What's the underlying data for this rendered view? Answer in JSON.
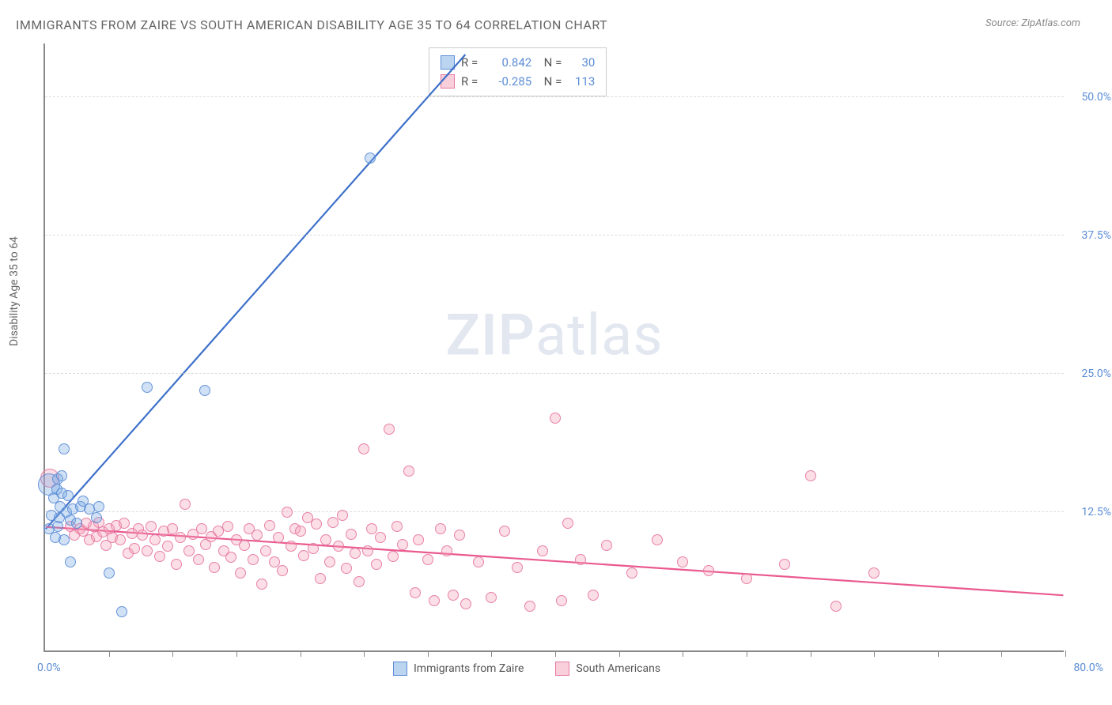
{
  "title": "IMMIGRANTS FROM ZAIRE VS SOUTH AMERICAN DISABILITY AGE 35 TO 64 CORRELATION CHART",
  "source": "Source: ZipAtlas.com",
  "y_axis_label": "Disability Age 35 to 64",
  "watermark_a": "ZIP",
  "watermark_b": "atlas",
  "chart": {
    "type": "scatter",
    "xlim": [
      0,
      80
    ],
    "ylim": [
      0,
      55
    ],
    "x_origin_label": "0.0%",
    "x_max_label": "80.0%",
    "y_ticks": [
      {
        "v": 12.5,
        "label": "12.5%"
      },
      {
        "v": 25.0,
        "label": "25.0%"
      },
      {
        "v": 37.5,
        "label": "37.5%"
      },
      {
        "v": 50.0,
        "label": "50.0%"
      }
    ],
    "x_tick_step": 5,
    "background_color": "#ffffff",
    "grid_color": "#dddddd",
    "axis_color": "#888888",
    "point_radius": 7,
    "series": [
      {
        "name": "Immigrants from Zaire",
        "color_fill": "rgba(120,170,225,0.35)",
        "color_stroke": "#5b8dd6",
        "legend_swatch_class": "blue",
        "stats": {
          "R": "0.842",
          "N": "30"
        },
        "trend": {
          "x1": 0,
          "y1": 11.0,
          "x2": 33,
          "y2": 54.0,
          "stroke": "#3e70c9",
          "width": 2.2
        },
        "points": [
          {
            "x": 0.3,
            "y": 11.0,
            "r": 7
          },
          {
            "x": 0.3,
            "y": 15.0,
            "r": 14
          },
          {
            "x": 0.5,
            "y": 12.2,
            "r": 7
          },
          {
            "x": 0.7,
            "y": 13.8,
            "r": 7
          },
          {
            "x": 0.8,
            "y": 10.2,
            "r": 7
          },
          {
            "x": 0.9,
            "y": 14.6,
            "r": 7
          },
          {
            "x": 1.0,
            "y": 15.5,
            "r": 7
          },
          {
            "x": 1.0,
            "y": 11.2,
            "r": 7
          },
          {
            "x": 1.1,
            "y": 12.0,
            "r": 7
          },
          {
            "x": 1.2,
            "y": 13.0,
            "r": 7
          },
          {
            "x": 1.3,
            "y": 14.2,
            "r": 7
          },
          {
            "x": 1.3,
            "y": 15.8,
            "r": 7
          },
          {
            "x": 1.5,
            "y": 18.2,
            "r": 7
          },
          {
            "x": 1.5,
            "y": 10.0,
            "r": 7
          },
          {
            "x": 1.7,
            "y": 12.5,
            "r": 7
          },
          {
            "x": 1.8,
            "y": 14.0,
            "r": 7
          },
          {
            "x": 2.0,
            "y": 11.8,
            "r": 7
          },
          {
            "x": 2.0,
            "y": 8.0,
            "r": 7
          },
          {
            "x": 2.2,
            "y": 12.8,
            "r": 7
          },
          {
            "x": 2.5,
            "y": 11.5,
            "r": 7
          },
          {
            "x": 2.8,
            "y": 13.0,
            "r": 7
          },
          {
            "x": 3.0,
            "y": 13.5,
            "r": 7
          },
          {
            "x": 3.5,
            "y": 12.8,
            "r": 7
          },
          {
            "x": 4.0,
            "y": 12.0,
            "r": 7
          },
          {
            "x": 4.2,
            "y": 13.0,
            "r": 7
          },
          {
            "x": 5.0,
            "y": 7.0,
            "r": 7
          },
          {
            "x": 6.0,
            "y": 3.5,
            "r": 7
          },
          {
            "x": 8.0,
            "y": 23.8,
            "r": 7
          },
          {
            "x": 12.5,
            "y": 23.5,
            "r": 7
          },
          {
            "x": 25.5,
            "y": 44.5,
            "r": 7
          }
        ]
      },
      {
        "name": "South Americans",
        "color_fill": "rgba(245,160,185,0.35)",
        "color_stroke": "#e678a0",
        "legend_swatch_class": "pink",
        "stats": {
          "R": "-0.285",
          "N": "113"
        },
        "trend": {
          "x1": 0,
          "y1": 11.2,
          "x2": 80,
          "y2": 5.0,
          "stroke": "#ea5a8f",
          "width": 2.2
        },
        "points": [
          {
            "x": 0.4,
            "y": 15.6,
            "r": 12
          },
          {
            "x": 2.0,
            "y": 11.2,
            "r": 7
          },
          {
            "x": 2.3,
            "y": 10.4,
            "r": 7
          },
          {
            "x": 2.7,
            "y": 11.0,
            "r": 7
          },
          {
            "x": 3.0,
            "y": 10.8,
            "r": 7
          },
          {
            "x": 3.2,
            "y": 11.5,
            "r": 7
          },
          {
            "x": 3.5,
            "y": 10.0,
            "r": 7
          },
          {
            "x": 3.8,
            "y": 11.2,
            "r": 7
          },
          {
            "x": 4.0,
            "y": 10.3,
            "r": 7
          },
          {
            "x": 4.2,
            "y": 11.6,
            "r": 7
          },
          {
            "x": 4.5,
            "y": 10.7,
            "r": 7
          },
          {
            "x": 4.8,
            "y": 9.5,
            "r": 7
          },
          {
            "x": 5.0,
            "y": 11.0,
            "r": 7
          },
          {
            "x": 5.3,
            "y": 10.2,
            "r": 7
          },
          {
            "x": 5.6,
            "y": 11.3,
            "r": 7
          },
          {
            "x": 5.9,
            "y": 10.0,
            "r": 7
          },
          {
            "x": 6.2,
            "y": 11.5,
            "r": 7
          },
          {
            "x": 6.5,
            "y": 8.8,
            "r": 7
          },
          {
            "x": 6.8,
            "y": 10.6,
            "r": 7
          },
          {
            "x": 7.0,
            "y": 9.2,
            "r": 7
          },
          {
            "x": 7.3,
            "y": 11.0,
            "r": 7
          },
          {
            "x": 7.6,
            "y": 10.4,
            "r": 7
          },
          {
            "x": 8.0,
            "y": 9.0,
            "r": 7
          },
          {
            "x": 8.3,
            "y": 11.2,
            "r": 7
          },
          {
            "x": 8.6,
            "y": 10.0,
            "r": 7
          },
          {
            "x": 9.0,
            "y": 8.5,
            "r": 7
          },
          {
            "x": 9.3,
            "y": 10.8,
            "r": 7
          },
          {
            "x": 9.6,
            "y": 9.4,
            "r": 7
          },
          {
            "x": 10.0,
            "y": 11.0,
            "r": 7
          },
          {
            "x": 10.3,
            "y": 7.8,
            "r": 7
          },
          {
            "x": 10.6,
            "y": 10.2,
            "r": 7
          },
          {
            "x": 11.0,
            "y": 13.2,
            "r": 7
          },
          {
            "x": 11.3,
            "y": 9.0,
            "r": 7
          },
          {
            "x": 11.6,
            "y": 10.5,
            "r": 7
          },
          {
            "x": 12.0,
            "y": 8.2,
            "r": 7
          },
          {
            "x": 12.3,
            "y": 11.0,
            "r": 7
          },
          {
            "x": 12.6,
            "y": 9.6,
            "r": 7
          },
          {
            "x": 13.0,
            "y": 10.3,
            "r": 7
          },
          {
            "x": 13.3,
            "y": 7.5,
            "r": 7
          },
          {
            "x": 13.6,
            "y": 10.8,
            "r": 7
          },
          {
            "x": 14.0,
            "y": 9.0,
            "r": 7
          },
          {
            "x": 14.3,
            "y": 11.2,
            "r": 7
          },
          {
            "x": 14.6,
            "y": 8.4,
            "r": 7
          },
          {
            "x": 15.0,
            "y": 10.0,
            "r": 7
          },
          {
            "x": 15.3,
            "y": 7.0,
            "r": 7
          },
          {
            "x": 15.6,
            "y": 9.5,
            "r": 7
          },
          {
            "x": 16.0,
            "y": 11.0,
            "r": 7
          },
          {
            "x": 16.3,
            "y": 8.2,
            "r": 7
          },
          {
            "x": 16.6,
            "y": 10.4,
            "r": 7
          },
          {
            "x": 17.0,
            "y": 6.0,
            "r": 7
          },
          {
            "x": 17.3,
            "y": 9.0,
            "r": 7
          },
          {
            "x": 17.6,
            "y": 11.3,
            "r": 7
          },
          {
            "x": 18.0,
            "y": 8.0,
            "r": 7
          },
          {
            "x": 18.3,
            "y": 10.2,
            "r": 7
          },
          {
            "x": 18.6,
            "y": 7.2,
            "r": 7
          },
          {
            "x": 19.0,
            "y": 12.5,
            "r": 7
          },
          {
            "x": 19.3,
            "y": 9.4,
            "r": 7
          },
          {
            "x": 19.6,
            "y": 11.0,
            "r": 7
          },
          {
            "x": 20.0,
            "y": 10.8,
            "r": 7
          },
          {
            "x": 20.3,
            "y": 8.6,
            "r": 7
          },
          {
            "x": 20.6,
            "y": 12.0,
            "r": 7
          },
          {
            "x": 21.0,
            "y": 9.2,
            "r": 7
          },
          {
            "x": 21.3,
            "y": 11.4,
            "r": 7
          },
          {
            "x": 21.6,
            "y": 6.5,
            "r": 7
          },
          {
            "x": 22.0,
            "y": 10.0,
            "r": 7
          },
          {
            "x": 22.3,
            "y": 8.0,
            "r": 7
          },
          {
            "x": 22.6,
            "y": 11.6,
            "r": 7
          },
          {
            "x": 23.0,
            "y": 9.4,
            "r": 7
          },
          {
            "x": 23.3,
            "y": 12.2,
            "r": 7
          },
          {
            "x": 23.6,
            "y": 7.4,
            "r": 7
          },
          {
            "x": 24.0,
            "y": 10.5,
            "r": 7
          },
          {
            "x": 24.3,
            "y": 8.8,
            "r": 7
          },
          {
            "x": 24.6,
            "y": 6.2,
            "r": 7
          },
          {
            "x": 25.0,
            "y": 18.2,
            "r": 7
          },
          {
            "x": 25.3,
            "y": 9.0,
            "r": 7
          },
          {
            "x": 25.6,
            "y": 11.0,
            "r": 7
          },
          {
            "x": 26.0,
            "y": 7.8,
            "r": 7
          },
          {
            "x": 26.3,
            "y": 10.2,
            "r": 7
          },
          {
            "x": 27.0,
            "y": 20.0,
            "r": 7
          },
          {
            "x": 27.3,
            "y": 8.5,
            "r": 7
          },
          {
            "x": 27.6,
            "y": 11.2,
            "r": 7
          },
          {
            "x": 28.0,
            "y": 9.6,
            "r": 7
          },
          {
            "x": 28.5,
            "y": 16.2,
            "r": 7
          },
          {
            "x": 29.0,
            "y": 5.2,
            "r": 7
          },
          {
            "x": 29.3,
            "y": 10.0,
            "r": 7
          },
          {
            "x": 30.0,
            "y": 8.2,
            "r": 7
          },
          {
            "x": 30.5,
            "y": 4.5,
            "r": 7
          },
          {
            "x": 31.0,
            "y": 11.0,
            "r": 7
          },
          {
            "x": 31.5,
            "y": 9.0,
            "r": 7
          },
          {
            "x": 32.0,
            "y": 5.0,
            "r": 7
          },
          {
            "x": 32.5,
            "y": 10.4,
            "r": 7
          },
          {
            "x": 33.0,
            "y": 4.2,
            "r": 7
          },
          {
            "x": 34.0,
            "y": 8.0,
            "r": 7
          },
          {
            "x": 35.0,
            "y": 4.8,
            "r": 7
          },
          {
            "x": 36.0,
            "y": 10.8,
            "r": 7
          },
          {
            "x": 37.0,
            "y": 7.5,
            "r": 7
          },
          {
            "x": 38.0,
            "y": 4.0,
            "r": 7
          },
          {
            "x": 39.0,
            "y": 9.0,
            "r": 7
          },
          {
            "x": 40.0,
            "y": 21.0,
            "r": 7
          },
          {
            "x": 40.5,
            "y": 4.5,
            "r": 7
          },
          {
            "x": 41.0,
            "y": 11.5,
            "r": 7
          },
          {
            "x": 42.0,
            "y": 8.2,
            "r": 7
          },
          {
            "x": 43.0,
            "y": 5.0,
            "r": 7
          },
          {
            "x": 44.0,
            "y": 9.5,
            "r": 7
          },
          {
            "x": 46.0,
            "y": 7.0,
            "r": 7
          },
          {
            "x": 48.0,
            "y": 10.0,
            "r": 7
          },
          {
            "x": 50.0,
            "y": 8.0,
            "r": 7
          },
          {
            "x": 52.0,
            "y": 7.2,
            "r": 7
          },
          {
            "x": 55.0,
            "y": 6.5,
            "r": 7
          },
          {
            "x": 58.0,
            "y": 7.8,
            "r": 7
          },
          {
            "x": 60.0,
            "y": 15.8,
            "r": 7
          },
          {
            "x": 62.0,
            "y": 4.0,
            "r": 7
          },
          {
            "x": 65.0,
            "y": 7.0,
            "r": 7
          }
        ]
      }
    ]
  }
}
